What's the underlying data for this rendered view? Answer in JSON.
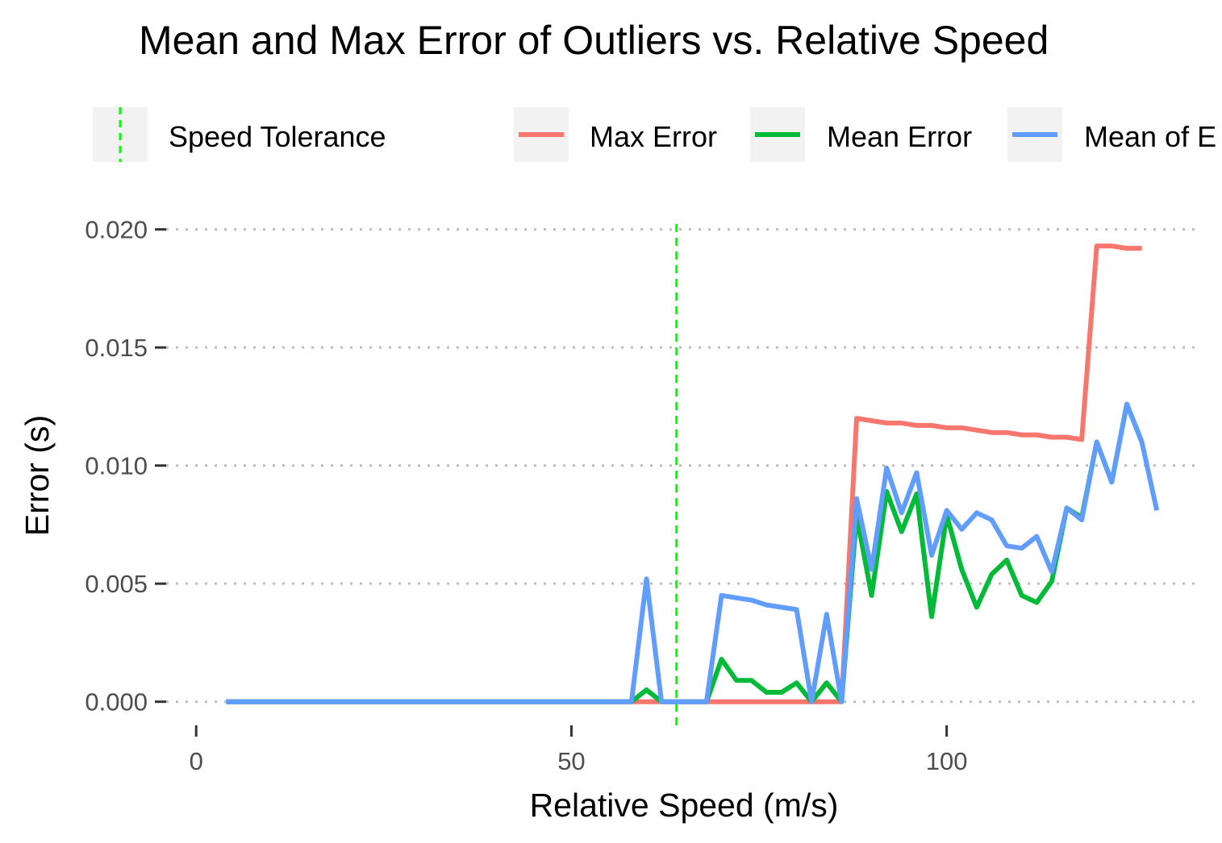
{
  "chart_data": {
    "type": "line",
    "title": "Mean and Max Error of Outliers vs. Relative Speed",
    "xlabel": "Relative Speed (m/s)",
    "ylabel": "Error (s)",
    "xlim": [
      -4,
      134
    ],
    "ylim": [
      -0.001,
      0.0205
    ],
    "x_ticks": [
      0,
      50,
      100
    ],
    "x_tick_labels": [
      "0",
      "50",
      "100"
    ],
    "y_ticks": [
      0,
      0.005,
      0.01,
      0.015,
      0.02
    ],
    "y_tick_labels": [
      "0.000",
      "0.005",
      "0.010",
      "0.015",
      "0.020"
    ],
    "grid": "horizontal dotted",
    "legend_position": "top",
    "vline": {
      "name": "Speed Tolerance",
      "x": 64,
      "color": "#00ff00",
      "style": "dashed"
    },
    "series": [
      {
        "name": "Max Error",
        "color": "#f8766d",
        "x": [
          4,
          58,
          60,
          62,
          64,
          66,
          68,
          70,
          72,
          74,
          76,
          78,
          80,
          82,
          84,
          86,
          88,
          90,
          92,
          94,
          96,
          98,
          100,
          102,
          104,
          106,
          108,
          110,
          112,
          114,
          116,
          118,
          120,
          122,
          124,
          126
        ],
        "y": [
          0,
          0,
          0,
          0,
          0,
          0,
          0,
          0,
          0,
          0,
          0,
          0,
          0,
          0,
          0,
          0,
          0.012,
          0.0119,
          0.0118,
          0.0118,
          0.0117,
          0.0117,
          0.0116,
          0.0116,
          0.0115,
          0.0114,
          0.0114,
          0.0113,
          0.0113,
          0.0112,
          0.0112,
          0.0111,
          0.0193,
          0.0193,
          0.0192,
          0.0192
        ]
      },
      {
        "name": "Mean Error",
        "color": "#00ba38",
        "x": [
          4,
          58,
          60,
          62,
          64,
          66,
          68,
          70,
          72,
          74,
          76,
          78,
          80,
          82,
          84,
          86,
          88,
          90,
          92,
          94,
          96,
          98,
          100,
          102,
          104,
          106,
          108,
          110,
          112,
          114,
          116,
          118,
          120,
          122,
          124,
          126
        ],
        "y": [
          0,
          0,
          0.0005,
          0,
          0,
          0,
          0,
          0.0018,
          0.0009,
          0.0009,
          0.0004,
          0.0004,
          0.0008,
          0,
          0.0008,
          0,
          0.0079,
          0.0045,
          0.0089,
          0.0072,
          0.0088,
          0.0036,
          0.0079,
          0.0056,
          0.004,
          0.0054,
          0.006,
          0.0045,
          0.0042,
          0.0051,
          0.0082,
          0.0078,
          0.011,
          0.0093,
          0.0126,
          0.011
        ]
      },
      {
        "name": "Mean of E",
        "color": "#619cff",
        "x": [
          4,
          58,
          60,
          62,
          64,
          66,
          68,
          70,
          72,
          74,
          76,
          78,
          80,
          82,
          84,
          86,
          88,
          90,
          92,
          94,
          96,
          98,
          100,
          102,
          104,
          106,
          108,
          110,
          112,
          114,
          116,
          118,
          120,
          122,
          124,
          126,
          128
        ],
        "y": [
          0,
          0,
          0.0052,
          0,
          0,
          0,
          0,
          0.0045,
          0.0044,
          0.0043,
          0.0041,
          0.004,
          0.0039,
          0,
          0.0037,
          0,
          0.0086,
          0.0056,
          0.0099,
          0.008,
          0.0097,
          0.0062,
          0.0081,
          0.0073,
          0.008,
          0.0077,
          0.0066,
          0.0065,
          0.007,
          0.0055,
          0.0082,
          0.0077,
          0.011,
          0.0093,
          0.0126,
          0.011,
          0.0081
        ]
      }
    ]
  }
}
